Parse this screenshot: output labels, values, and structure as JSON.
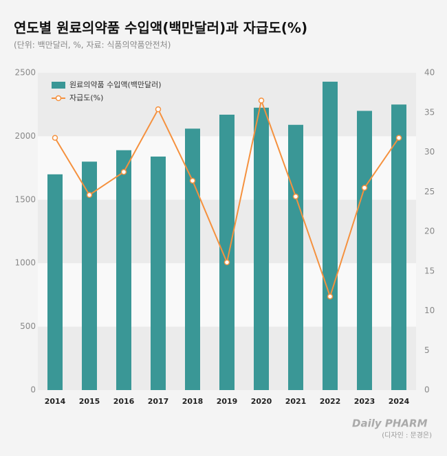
{
  "chart_data": {
    "type": "bar",
    "title": "연도별 원료의약품 수입액(백만달러)과 자급도(%)",
    "subtitle": "(단위: 백만달러, %, 자료: 식품의약품안전처)",
    "categories": [
      "2014",
      "2015",
      "2016",
      "2017",
      "2018",
      "2019",
      "2020",
      "2021",
      "2022",
      "2023",
      "2024"
    ],
    "series": [
      {
        "name": "원료의약품 수입액(백만달러)",
        "type": "bar",
        "color": "#3a9796",
        "values": [
          1700,
          1800,
          1890,
          1840,
          2060,
          2170,
          2225,
          2090,
          2430,
          2200,
          2250
        ]
      },
      {
        "name": "자급도(%)",
        "type": "line",
        "axis": "y2",
        "color": "#f5913e",
        "values": [
          31.8,
          24.6,
          27.5,
          35.4,
          26.4,
          16.1,
          36.5,
          24.4,
          11.8,
          25.5,
          31.8
        ]
      }
    ],
    "ylim": [
      0,
      2500
    ],
    "yticks": [
      0,
      500,
      1000,
      1500,
      2000,
      2500
    ],
    "y2lim": [
      0,
      40
    ],
    "y2ticks": [
      0,
      5,
      10,
      15,
      20,
      25,
      30,
      35,
      40
    ],
    "legend": "upper left",
    "logo": "Daily PHARM",
    "credit": "(디자인 : 문경은)"
  }
}
